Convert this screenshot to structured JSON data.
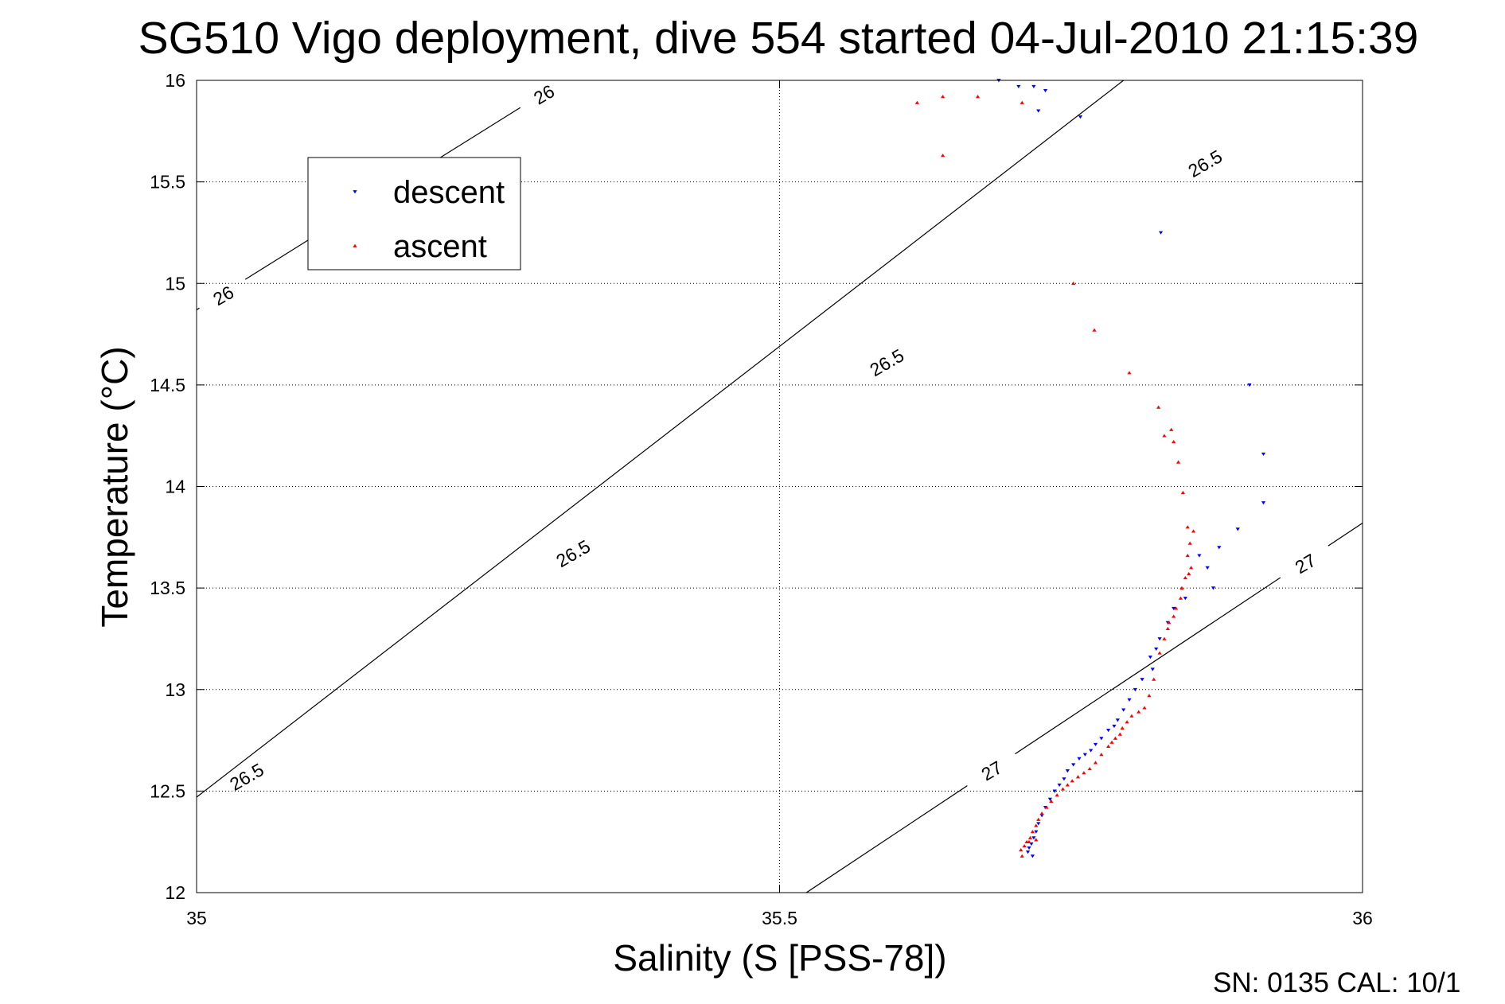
{
  "chart_data": {
    "type": "scatter",
    "title": "SG510 Vigo deployment, dive 554 started 04-Jul-2010 21:15:39",
    "xlabel": "Salinity (S [PSS-78])",
    "ylabel": "Temperature (°C)",
    "xlim": [
      35,
      36
    ],
    "ylim": [
      12,
      16
    ],
    "xticks": [
      "35",
      "35.5",
      "36"
    ],
    "yticks": [
      "12",
      "12.5",
      "13",
      "13.5",
      "14",
      "14.5",
      "15",
      "15.5",
      "16"
    ],
    "grid": true,
    "legend": {
      "placement": "top-left",
      "entries": [
        {
          "label": "descent",
          "color": "#0000ff",
          "marker": "triangle-down"
        },
        {
          "label": "ascent",
          "color": "#ff0000",
          "marker": "triangle-up"
        }
      ]
    },
    "contours": [
      {
        "level": "26",
        "lines": [
          [
            35.0,
            14.87,
            35.315,
            16.0
          ]
        ],
        "labels": [
          [
            35.298,
            15.93,
            34
          ],
          [
            35.023,
            14.94,
            34
          ]
        ]
      },
      {
        "level": "26.5",
        "lines": [
          [
            35.0,
            12.47,
            35.795,
            16.0
          ]
        ],
        "labels": [
          [
            35.043,
            12.57,
            34
          ],
          [
            35.323,
            13.67,
            34
          ],
          [
            35.592,
            14.61,
            34
          ],
          [
            35.865,
            15.59,
            34
          ]
        ]
      },
      {
        "level": "27",
        "lines": [
          [
            35.523,
            12.0,
            36.0,
            13.82
          ]
        ],
        "labels": [
          [
            35.682,
            12.6,
            36
          ],
          [
            35.951,
            13.62,
            36
          ]
        ]
      }
    ],
    "series": [
      {
        "name": "descent",
        "color": "#0000ff",
        "marker": "triangle-down",
        "points": [
          [
            35.688,
            16.0
          ],
          [
            35.705,
            15.97
          ],
          [
            35.718,
            15.97
          ],
          [
            35.728,
            15.95
          ],
          [
            35.722,
            15.85
          ],
          [
            35.758,
            15.82
          ],
          [
            35.827,
            15.25
          ],
          [
            35.903,
            14.5
          ],
          [
            35.915,
            14.16
          ],
          [
            35.915,
            13.92
          ],
          [
            35.893,
            13.79
          ],
          [
            35.877,
            13.7
          ],
          [
            35.872,
            13.5
          ],
          [
            35.867,
            13.6
          ],
          [
            35.86,
            13.66
          ],
          [
            35.848,
            13.45
          ],
          [
            35.838,
            13.4
          ],
          [
            35.833,
            13.33
          ],
          [
            35.826,
            13.25
          ],
          [
            35.823,
            13.2
          ],
          [
            35.818,
            13.16
          ],
          [
            35.82,
            13.1
          ],
          [
            35.811,
            13.05
          ],
          [
            35.805,
            13.0
          ],
          [
            35.8,
            12.95
          ],
          [
            35.795,
            12.9
          ],
          [
            35.79,
            12.85
          ],
          [
            35.787,
            12.82
          ],
          [
            35.782,
            12.8
          ],
          [
            35.776,
            12.76
          ],
          [
            35.771,
            12.73
          ],
          [
            35.767,
            12.7
          ],
          [
            35.762,
            12.68
          ],
          [
            35.757,
            12.66
          ],
          [
            35.752,
            12.63
          ],
          [
            35.747,
            12.6
          ],
          [
            35.744,
            12.56
          ],
          [
            35.74,
            12.53
          ],
          [
            35.736,
            12.5
          ],
          [
            35.732,
            12.46
          ],
          [
            35.728,
            12.42
          ],
          [
            35.725,
            12.38
          ],
          [
            35.722,
            12.34
          ],
          [
            35.72,
            12.3
          ],
          [
            35.718,
            12.27
          ],
          [
            35.716,
            12.24
          ],
          [
            35.714,
            12.22
          ],
          [
            35.713,
            12.2
          ],
          [
            35.717,
            12.18
          ]
        ]
      },
      {
        "name": "ascent",
        "color": "#ff0000",
        "marker": "triangle-up",
        "points": [
          [
            35.618,
            15.89
          ],
          [
            35.64,
            15.92
          ],
          [
            35.67,
            15.92
          ],
          [
            35.708,
            15.89
          ],
          [
            35.64,
            15.63
          ],
          [
            35.752,
            15.0
          ],
          [
            35.77,
            14.77
          ],
          [
            35.8,
            14.56
          ],
          [
            35.825,
            14.39
          ],
          [
            35.83,
            14.25
          ],
          [
            35.836,
            14.28
          ],
          [
            35.838,
            14.22
          ],
          [
            35.842,
            14.12
          ],
          [
            35.846,
            13.97
          ],
          [
            35.85,
            13.8
          ],
          [
            35.855,
            13.78
          ],
          [
            35.852,
            13.72
          ],
          [
            35.85,
            13.66
          ],
          [
            35.853,
            13.6
          ],
          [
            35.851,
            13.57
          ],
          [
            35.848,
            13.55
          ],
          [
            35.845,
            13.5
          ],
          [
            35.844,
            13.45
          ],
          [
            35.84,
            13.4
          ],
          [
            35.838,
            13.36
          ],
          [
            35.834,
            13.33
          ],
          [
            35.833,
            13.3
          ],
          [
            35.83,
            13.25
          ],
          [
            35.826,
            13.18
          ],
          [
            35.821,
            13.05
          ],
          [
            35.817,
            12.97
          ],
          [
            35.813,
            12.91
          ],
          [
            35.808,
            12.89
          ],
          [
            35.802,
            12.87
          ],
          [
            35.798,
            12.84
          ],
          [
            35.794,
            12.81
          ],
          [
            35.792,
            12.78
          ],
          [
            35.788,
            12.76
          ],
          [
            35.785,
            12.74
          ],
          [
            35.782,
            12.72
          ],
          [
            35.776,
            12.68
          ],
          [
            35.771,
            12.64
          ],
          [
            35.766,
            12.61
          ],
          [
            35.761,
            12.59
          ],
          [
            35.756,
            12.57
          ],
          [
            35.751,
            12.55
          ],
          [
            35.747,
            12.53
          ],
          [
            35.743,
            12.51
          ],
          [
            35.738,
            12.48
          ],
          [
            35.733,
            12.45
          ],
          [
            35.729,
            12.42
          ],
          [
            35.725,
            12.39
          ],
          [
            35.722,
            12.36
          ],
          [
            35.72,
            12.33
          ],
          [
            35.717,
            12.3
          ],
          [
            35.715,
            12.27
          ],
          [
            35.712,
            12.25
          ],
          [
            35.71,
            12.23
          ],
          [
            35.707,
            12.21
          ],
          [
            35.708,
            12.18
          ],
          [
            35.714,
            12.25
          ],
          [
            35.72,
            12.26
          ]
        ]
      }
    ]
  },
  "footer": {
    "text": "SN: 0135  CAL: 10/1"
  }
}
